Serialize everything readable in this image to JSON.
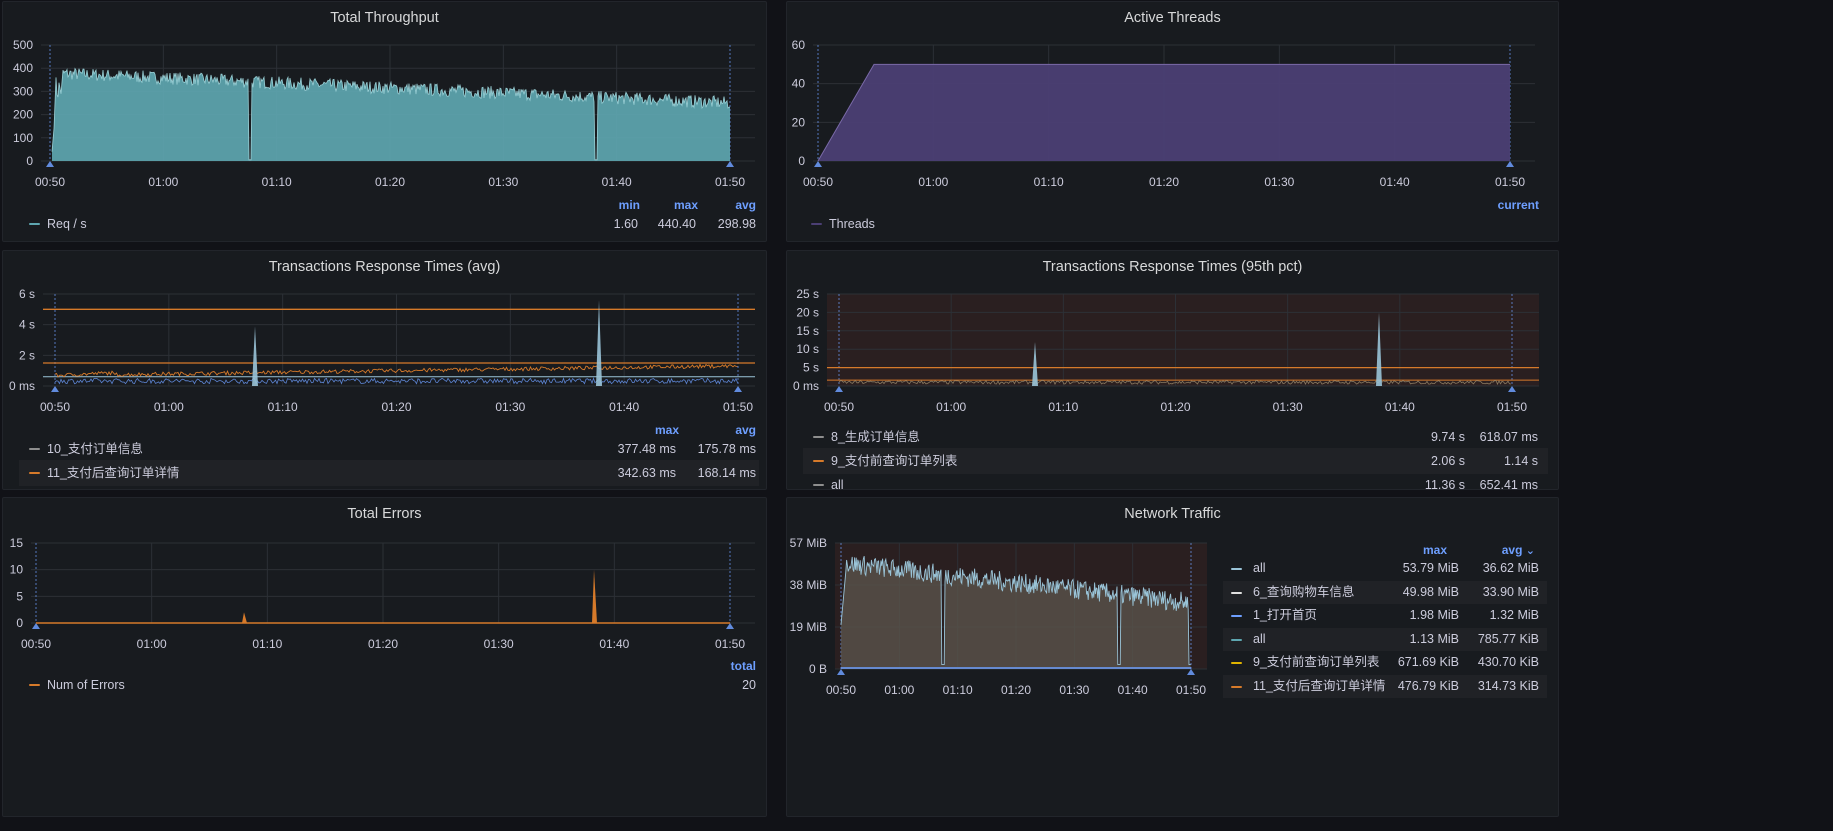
{
  "colors": {
    "teal": "#5ea6b0",
    "purple": "#4b3f74",
    "orange": "#d67a2a",
    "blue": "#6e9fff",
    "lightblue": "#9ac4d8"
  },
  "x_ticks": [
    "00:50",
    "01:00",
    "01:10",
    "01:20",
    "01:30",
    "01:40",
    "01:50"
  ],
  "panels": {
    "throughput": {
      "title": "Total Throughput",
      "yticks": [
        "500",
        "400",
        "300",
        "200",
        "100",
        "0"
      ],
      "legend_headers": [
        "min",
        "max",
        "avg"
      ],
      "series": [
        {
          "name": "Req / s",
          "color": "#5ea6b0",
          "values": [
            "1.60",
            "440.40",
            "298.98"
          ]
        }
      ]
    },
    "threads": {
      "title": "Active Threads",
      "yticks": [
        "60",
        "40",
        "20",
        "0"
      ],
      "legend_headers": [
        "current"
      ],
      "series": [
        {
          "name": "Threads",
          "color": "#4b3f74",
          "values": []
        }
      ]
    },
    "resp_avg": {
      "title": "Transactions Response Times (avg)",
      "yticks": [
        "6 s",
        "4 s",
        "2 s",
        "0 ms"
      ],
      "legend_headers": [
        "max",
        "avg"
      ],
      "series": [
        {
          "name": "10_支付订单信息",
          "color": "#8e8e8e",
          "values": [
            "377.48 ms",
            "175.78 ms"
          ]
        },
        {
          "name": "11_支付后查询订单详情",
          "color": "#d67a2a",
          "values": [
            "342.63 ms",
            "168.14 ms"
          ]
        }
      ]
    },
    "resp_p95": {
      "title": "Transactions Response Times (95th pct)",
      "yticks": [
        "25 s",
        "20 s",
        "15 s",
        "10 s",
        "5 s",
        "0 ms"
      ],
      "legend_headers": [],
      "series": [
        {
          "name": "8_生成订单信息",
          "color": "#8e8e8e",
          "values": [
            "9.74 s",
            "618.07 ms"
          ]
        },
        {
          "name": "9_支付前查询订单列表",
          "color": "#d67a2a",
          "values": [
            "2.06 s",
            "1.14 s"
          ]
        },
        {
          "name": "all",
          "color": "#8e8e8e",
          "values": [
            "11.36 s",
            "652.41 ms"
          ]
        }
      ]
    },
    "errors": {
      "title": "Total Errors",
      "yticks": [
        "15",
        "10",
        "5",
        "0"
      ],
      "legend_headers": [
        "total"
      ],
      "series": [
        {
          "name": "Num of Errors",
          "color": "#d67a2a",
          "values": [
            "20"
          ]
        }
      ]
    },
    "network": {
      "title": "Network Traffic",
      "yticks": [
        "57 MiB",
        "38 MiB",
        "19 MiB",
        "0 B"
      ],
      "legend_headers": [
        "max",
        "avg"
      ],
      "sort_indicator": "⌄",
      "series": [
        {
          "name": "all",
          "color": "#9ac4d8",
          "values": [
            "53.79 MiB",
            "36.62 MiB"
          ]
        },
        {
          "name": "6_查询购物车信息",
          "color": "#e0e0e0",
          "values": [
            "49.98 MiB",
            "33.90 MiB"
          ]
        },
        {
          "name": "1_打开首页",
          "color": "#6e9fff",
          "values": [
            "1.98 MiB",
            "1.32 MiB"
          ]
        },
        {
          "name": "all",
          "color": "#5ea6b0",
          "values": [
            "1.13 MiB",
            "785.77 KiB"
          ]
        },
        {
          "name": "9_支付前查询订单列表",
          "color": "#e0b400",
          "values": [
            "671.69 KiB",
            "430.70 KiB"
          ]
        },
        {
          "name": "11_支付后查询订单详情",
          "color": "#d67a2a",
          "values": [
            "476.79 KiB",
            "314.73 KiB"
          ]
        }
      ]
    }
  }
}
